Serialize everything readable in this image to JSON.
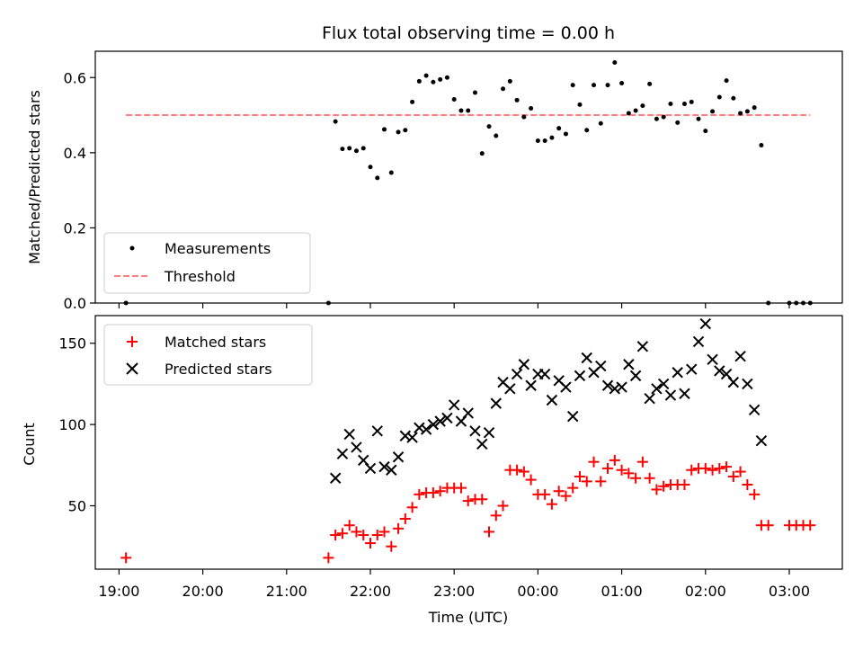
{
  "chart_data": [
    {
      "type": "scatter",
      "title": "Flux total observing time = 0.00 h",
      "ylabel": "Matched/Predicted stars",
      "ylim": [
        0,
        0.67
      ],
      "xlim": [
        "18:43",
        "03:38"
      ],
      "yticks": [
        "0.0",
        "0.2",
        "0.4",
        "0.6"
      ],
      "legend_placement": "lower-left",
      "grid": false,
      "series": [
        {
          "name": "Measurements",
          "marker": "dot",
          "color": "#000000",
          "x": [
            "19:05",
            "21:30",
            "21:35",
            "21:40",
            "21:45",
            "21:50",
            "21:55",
            "22:00",
            "22:05",
            "22:10",
            "22:15",
            "22:20",
            "22:25",
            "22:30",
            "22:35",
            "22:40",
            "22:45",
            "22:50",
            "22:55",
            "23:00",
            "23:05",
            "23:10",
            "23:15",
            "23:20",
            "23:25",
            "23:30",
            "23:35",
            "23:40",
            "23:45",
            "23:50",
            "23:55",
            "00:00",
            "00:05",
            "00:10",
            "00:15",
            "00:20",
            "00:25",
            "00:30",
            "00:35",
            "00:40",
            "00:45",
            "00:50",
            "00:55",
            "01:00",
            "01:05",
            "01:10",
            "01:15",
            "01:20",
            "01:25",
            "01:30",
            "01:35",
            "01:40",
            "01:45",
            "01:50",
            "01:55",
            "02:00",
            "02:05",
            "02:10",
            "02:15",
            "02:20",
            "02:25",
            "02:30",
            "02:35",
            "02:40",
            "02:45",
            "03:00",
            "03:05",
            "03:10",
            "03:15"
          ],
          "y": [
            0.0,
            0.0,
            0.483,
            0.41,
            0.412,
            0.405,
            0.412,
            0.362,
            0.333,
            0.462,
            0.347,
            0.455,
            0.46,
            0.535,
            0.59,
            0.605,
            0.588,
            0.595,
            0.6,
            0.542,
            0.512,
            0.512,
            0.56,
            0.398,
            0.47,
            0.445,
            0.57,
            0.59,
            0.54,
            0.495,
            0.518,
            0.432,
            0.432,
            0.44,
            0.465,
            0.45,
            0.58,
            0.528,
            0.46,
            0.58,
            0.478,
            0.58,
            0.64,
            0.585,
            0.505,
            0.512,
            0.525,
            0.583,
            0.49,
            0.495,
            0.53,
            0.48,
            0.53,
            0.535,
            0.49,
            0.458,
            0.51,
            0.548,
            0.592,
            0.545,
            0.505,
            0.51,
            0.52,
            0.42,
            0.0,
            0.0,
            0.0,
            0.0,
            0.0
          ]
        },
        {
          "name": "Threshold",
          "marker": "dashed-line",
          "color": "#ff7f7f",
          "x": [
            "19:05",
            "03:15"
          ],
          "y": [
            0.5,
            0.5
          ]
        }
      ]
    },
    {
      "type": "scatter",
      "xlabel": "Time (UTC)",
      "ylabel": "Count",
      "ylim": [
        11,
        167
      ],
      "xlim": [
        "18:43",
        "03:38"
      ],
      "yticks": [
        "50",
        "100",
        "150"
      ],
      "xticks": [
        "19:00",
        "20:00",
        "21:00",
        "22:00",
        "23:00",
        "00:00",
        "01:00",
        "02:00",
        "03:00"
      ],
      "legend_placement": "upper-left",
      "grid": false,
      "series": [
        {
          "name": "Matched stars",
          "marker": "plus",
          "color": "#ff0000",
          "x": [
            "19:05",
            "21:30",
            "21:35",
            "21:40",
            "21:45",
            "21:50",
            "21:55",
            "22:00",
            "22:05",
            "22:10",
            "22:15",
            "22:20",
            "22:25",
            "22:30",
            "22:35",
            "22:40",
            "22:45",
            "22:50",
            "22:55",
            "23:00",
            "23:05",
            "23:10",
            "23:15",
            "23:20",
            "23:25",
            "23:30",
            "23:35",
            "23:40",
            "23:45",
            "23:50",
            "23:55",
            "00:00",
            "00:05",
            "00:10",
            "00:15",
            "00:20",
            "00:25",
            "00:30",
            "00:35",
            "00:40",
            "00:45",
            "00:50",
            "00:55",
            "01:00",
            "01:05",
            "01:10",
            "01:15",
            "01:20",
            "01:25",
            "01:30",
            "01:35",
            "01:40",
            "01:45",
            "01:50",
            "01:55",
            "02:00",
            "02:05",
            "02:10",
            "02:15",
            "02:20",
            "02:25",
            "02:30",
            "02:35",
            "02:40",
            "02:45",
            "03:00",
            "03:05",
            "03:10",
            "03:15"
          ],
          "y": [
            18,
            18,
            32,
            33,
            38,
            34,
            32,
            27,
            32,
            34,
            25,
            36,
            42,
            49,
            57,
            58,
            58,
            59,
            61,
            61,
            61,
            53,
            54,
            54,
            34,
            44,
            50,
            72,
            72,
            71,
            66,
            57,
            57,
            51,
            59,
            56,
            61,
            68,
            65,
            77,
            65,
            73,
            78,
            72,
            70,
            67,
            77,
            67,
            60,
            62,
            63,
            63,
            63,
            72,
            73,
            73,
            72,
            73,
            74,
            68,
            71,
            63,
            57,
            38,
            38,
            38,
            38,
            38,
            38
          ]
        },
        {
          "name": "Predicted stars",
          "marker": "x",
          "color": "#000000",
          "x": [
            "21:35",
            "21:40",
            "21:45",
            "21:50",
            "21:55",
            "22:00",
            "22:05",
            "22:10",
            "22:15",
            "22:20",
            "22:25",
            "22:30",
            "22:35",
            "22:40",
            "22:45",
            "22:50",
            "22:55",
            "23:00",
            "23:05",
            "23:10",
            "23:15",
            "23:20",
            "23:25",
            "23:30",
            "23:35",
            "23:40",
            "23:45",
            "23:50",
            "23:55",
            "00:00",
            "00:05",
            "00:10",
            "00:15",
            "00:20",
            "00:25",
            "00:30",
            "00:35",
            "00:40",
            "00:45",
            "00:50",
            "00:55",
            "01:00",
            "01:05",
            "01:10",
            "01:15",
            "01:20",
            "01:25",
            "01:30",
            "01:35",
            "01:40",
            "01:45",
            "01:50",
            "01:55",
            "02:00",
            "02:05",
            "02:10",
            "02:15",
            "02:20",
            "02:25",
            "02:30",
            "02:35",
            "02:40"
          ],
          "y": [
            67,
            82,
            94,
            86,
            78,
            73,
            96,
            74,
            72,
            80,
            93,
            92,
            98,
            97,
            100,
            102,
            104,
            112,
            102,
            107,
            96,
            88,
            95,
            113,
            126,
            122,
            131,
            137,
            124,
            131,
            131,
            115,
            127,
            123,
            105,
            130,
            141,
            132,
            136,
            124,
            122,
            123,
            137,
            130,
            148,
            116,
            122,
            125,
            118,
            132,
            119,
            134,
            151,
            162,
            140,
            133,
            131,
            126,
            142,
            125,
            109,
            90
          ]
        }
      ]
    }
  ]
}
